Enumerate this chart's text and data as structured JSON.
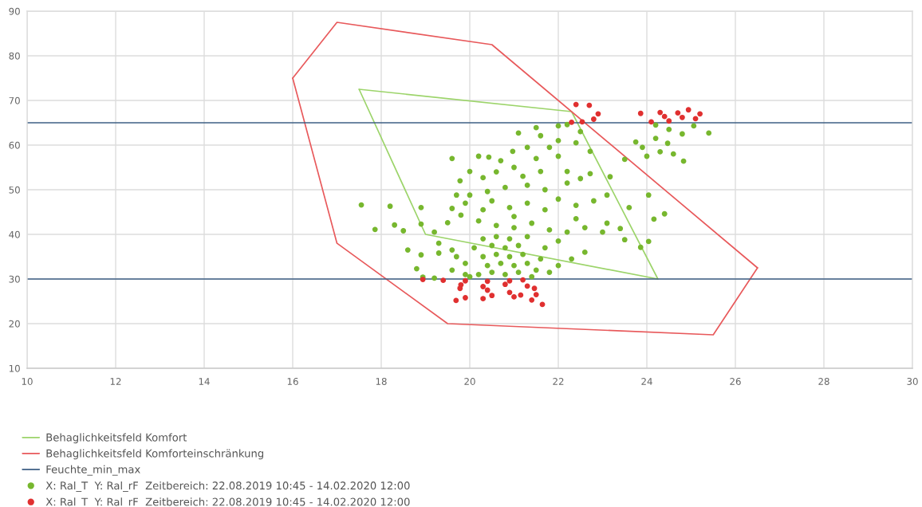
{
  "chart_data": {
    "type": "scatter",
    "xlim": [
      10,
      30
    ],
    "xticks": [
      10,
      12,
      14,
      16,
      18,
      20,
      22,
      24,
      26,
      28,
      30
    ],
    "ylim": [
      10,
      90
    ],
    "yticks": [
      10,
      20,
      30,
      40,
      50,
      60,
      70,
      80,
      90
    ],
    "grid": true,
    "legend": "bottom left",
    "series": [
      {
        "name": "Behaglichkeitsfeld Komfort",
        "type": "line",
        "color": "#9cd46a",
        "line_style": "solid",
        "x": [
          17.5,
          22.3,
          24.25
        ],
        "values": [
          72.5,
          67.5,
          30
        ]
      },
      {
        "type": "line",
        "color": "#9cd46a",
        "line_style": "solid",
        "x": [
          17.5,
          19,
          24.25
        ],
        "values": [
          72.5,
          40,
          30
        ]
      },
      {
        "name": "Behaglichkeitsfeld Komforteinschränkung",
        "type": "line",
        "color": "#e8595b",
        "line_style": "solid",
        "x": [
          16,
          17,
          20.5,
          26.5
        ],
        "values": [
          75,
          87.5,
          82.5,
          32.5
        ]
      },
      {
        "type": "line",
        "color": "#e8595b",
        "line_style": "solid",
        "x": [
          16,
          17,
          19.5,
          25.5,
          26.5
        ],
        "values": [
          75,
          38,
          20,
          17.5,
          32.5
        ]
      },
      {
        "name": "Feuchte_min_max",
        "type": "line",
        "color": "#3e5f85",
        "line_style": "solid",
        "x": [
          10,
          30
        ],
        "values": [
          65,
          65
        ]
      },
      {
        "type": "line",
        "color": "#3e5f85",
        "line_style": "solid",
        "x": [
          10,
          30
        ],
        "values": [
          30,
          30
        ]
      },
      {
        "name": "X: Ral_T  Y: Ral_rF  Zeitbereich: 22.08.2019 10:45 - 14.02.2020 12:00",
        "color": "#77b72e",
        "marker": "circle",
        "x": [
          20.2,
          20.5,
          20.8,
          21.1,
          20.4,
          20.7,
          21.0,
          21.3,
          20.3,
          20.6,
          20.9,
          21.2,
          20.1,
          20.5,
          20.8,
          21.1,
          20.3,
          20.6,
          20.9,
          21.3,
          19.9,
          19.7,
          19.6,
          21.5,
          21.6,
          21.7,
          20.0,
          21.4,
          17.55,
          18.2,
          18.9,
          19.6,
          20.3,
          17.86,
          18.5,
          19.2,
          18.3,
          18.9,
          19.5,
          18.9,
          19.3,
          18.8,
          18.94,
          19.2,
          18.6,
          19.3,
          19.8,
          20.2,
          20.6,
          21.0,
          21.4,
          21.8,
          22.2,
          22.6,
          23.0,
          23.4,
          23.86,
          24.04,
          23.5,
          20.0,
          20.5,
          20.9,
          21.3,
          21.7,
          22.0,
          22.4,
          22.8,
          23.1,
          23.6,
          24.04,
          24.16,
          24.4,
          23.1,
          22.4,
          21.0,
          19.7,
          19.9,
          20.4,
          20.8,
          21.3,
          21.7,
          22.2,
          22.72,
          23.17,
          22.5,
          19.78,
          20.0,
          20.3,
          20.43,
          20.97,
          21.3,
          21.6,
          22.0,
          22.2,
          22.5,
          22.72,
          22.2,
          21.6,
          21.0,
          20.7,
          21.5,
          22.0,
          21.1,
          21.5,
          22.0,
          21.8,
          22.4,
          20.2,
          19.6,
          21.2,
          20.6,
          23.5,
          23.75,
          23.9,
          24.2,
          24.47,
          24.8,
          25.06,
          25.4,
          24.83,
          24.6,
          24.3,
          24.0,
          24.5,
          24.2,
          19.6,
          19.9,
          21.8,
          22.0,
          22.3,
          22.6,
          22.0
        ],
        "values": [
          31,
          31.5,
          31,
          31.5,
          33,
          33.5,
          33,
          33.5,
          35,
          35.5,
          35,
          35.5,
          37,
          37.5,
          37,
          37.5,
          39,
          39.5,
          39,
          39.5,
          33.5,
          35,
          36.5,
          32,
          34.5,
          37,
          30.5,
          30.5,
          46.6,
          46.3,
          46,
          45.8,
          45.5,
          41.1,
          40.8,
          40.5,
          42.1,
          42.3,
          42.6,
          35.4,
          35.8,
          32.3,
          30.4,
          30.2,
          36.5,
          38,
          44.3,
          43,
          42,
          41.5,
          42.5,
          41,
          40.5,
          41.5,
          40.5,
          41.3,
          37.1,
          38.4,
          38.8,
          48.8,
          47.5,
          46,
          47,
          45.5,
          47.9,
          46.5,
          47.5,
          48.8,
          46,
          48.8,
          43.4,
          44.6,
          42.5,
          43.5,
          44,
          48.8,
          47,
          49.6,
          50.5,
          51,
          50,
          51.5,
          53.6,
          52.9,
          52.5,
          52,
          54.1,
          52.7,
          57.3,
          58.6,
          59.5,
          62.1,
          64.3,
          64.6,
          63,
          58.6,
          54.1,
          54.1,
          55,
          56.5,
          57,
          57.5,
          62.7,
          63.9,
          61,
          59.5,
          60.5,
          57.5,
          57,
          53,
          54,
          56.8,
          60.7,
          59.5,
          61.5,
          60.4,
          62.5,
          64.3,
          62.7,
          56.4,
          58,
          58.5,
          57.5,
          63.5,
          64.5,
          32,
          31,
          31.5,
          33,
          34.5,
          36,
          38.5
        ]
      },
      {
        "name": "X: Ral_T  Y: Ral_rF  Zeitbereich: 22.08.2019 10:45 - 14.02.2020 12:00",
        "color": "#e03030",
        "marker": "circle",
        "x": [
          22.4,
          22.7,
          22.9,
          22.8,
          22.54,
          22.3,
          23.86,
          24.3,
          24.7,
          24.94,
          25.2,
          25.1,
          24.8,
          24.5,
          24.1,
          24.4,
          18.94,
          19.4,
          19.9,
          20.4,
          20.9,
          21.2,
          19.8,
          20.3,
          20.8,
          21.3,
          19.78,
          20.4,
          20.9,
          21.46,
          21.5,
          21.15,
          20.5,
          19.9,
          19.69,
          20.3,
          21.0,
          21.64,
          21.4
        ],
        "values": [
          69.1,
          68.9,
          67,
          65.8,
          65.2,
          65.1,
          67.1,
          67.3,
          67.2,
          67.9,
          67,
          65.9,
          66.2,
          65.4,
          65.2,
          66.4,
          29.9,
          29.7,
          29.6,
          29.5,
          29.6,
          29.8,
          28.7,
          28.3,
          28.8,
          28.4,
          27.9,
          27.5,
          27,
          27.9,
          26.5,
          26.4,
          26.3,
          25.8,
          25.2,
          25.6,
          26,
          24.3,
          25.3
        ]
      }
    ]
  }
}
